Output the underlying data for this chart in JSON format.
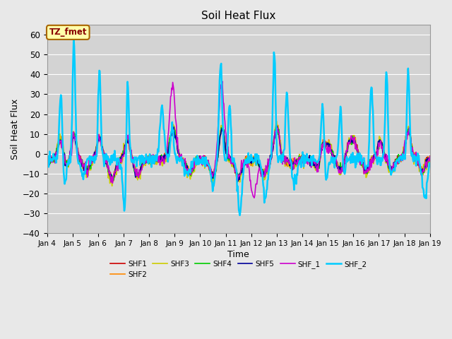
{
  "title": "Soil Heat Flux",
  "xlabel": "Time",
  "ylabel": "Soil Heat Flux",
  "ylim": [
    -40,
    65
  ],
  "yticks": [
    -40,
    -30,
    -20,
    -10,
    0,
    10,
    20,
    30,
    40,
    50,
    60
  ],
  "background_color": "#e8e8e8",
  "plot_bg_color": "#d3d3d3",
  "annotation_text": "TZ_fmet",
  "annotation_bg": "#ffffaa",
  "annotation_border": "#aa6600",
  "annotation_text_color": "#880000",
  "series_colors": {
    "SHF1": "#cc0000",
    "SHF2": "#ff8800",
    "SHF3": "#cccc00",
    "SHF4": "#00cc00",
    "SHF5": "#000099",
    "SHF_1": "#cc00cc",
    "SHF_2": "#00ccff"
  },
  "series_lw": {
    "SHF1": 1.2,
    "SHF2": 1.2,
    "SHF3": 1.2,
    "SHF4": 1.2,
    "SHF5": 1.2,
    "SHF_1": 1.2,
    "SHF_2": 1.8
  },
  "n_points": 720,
  "x_start": 4.0,
  "x_end": 19.0,
  "xtick_positions": [
    4,
    5,
    6,
    7,
    8,
    9,
    10,
    11,
    12,
    13,
    14,
    15,
    16,
    17,
    18,
    19
  ],
  "xtick_labels": [
    "Jan 4",
    "Jan 5",
    "Jan 6",
    "Jan 7",
    "Jan 8",
    "Jan 9",
    "Jan 10",
    "Jan 11",
    "Jan 12",
    "Jan 13",
    "Jan 14",
    "Jan 15",
    "Jan 16",
    "Jan 17",
    "Jan 18",
    "Jan 19"
  ]
}
